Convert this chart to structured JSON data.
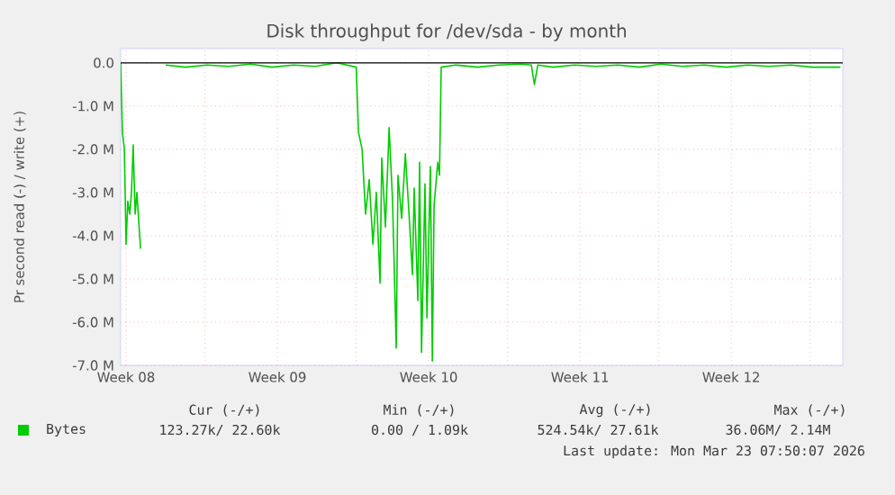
{
  "chart_data": {
    "type": "line",
    "title": "Disk throughput for /dev/sda - by month",
    "ylabel": "Pr second read (-) / write (+)",
    "x": [
      "2026-02-17T22:00",
      "2026-02-17T23:55",
      "2026-02-18T02:05",
      "2026-02-18T04:00",
      "2026-02-18T05:55",
      "2026-02-18T08:05",
      "2026-02-18T10:00",
      "2026-02-18T11:55",
      "2026-02-18T14:05",
      "2026-02-18T16:00",
      "2026-02-18T20:05",
      "2026-02-18T22:00",
      "2026-02-19T23:55",
      "2026-02-20T22:00",
      "2026-02-21T22:00",
      "2026-02-22T22:00",
      "2026-02-23T22:00",
      "2026-02-24T22:00",
      "2026-02-25T22:00",
      "2026-02-26T22:00",
      "2026-02-27T22:00",
      "2026-02-28T19:35",
      "2026-02-28T22:00",
      "2026-03-01T02:05",
      "2026-03-01T05:55",
      "2026-03-01T10:00",
      "2026-03-01T14:05",
      "2026-03-01T17:55",
      "2026-03-01T22:00",
      "2026-03-01T23:55",
      "2026-03-02T04:00",
      "2026-03-02T08:05",
      "2026-03-02T11:55",
      "2026-03-02T16:00",
      "2026-03-02T17:55",
      "2026-03-02T22:00",
      "2026-03-03T02:05",
      "2026-03-03T05:55",
      "2026-03-03T10:00",
      "2026-03-03T11:55",
      "2026-03-03T16:00",
      "2026-03-03T17:55",
      "2026-03-03T20:05",
      "2026-03-03T23:55",
      "2026-03-04T02:05",
      "2026-03-04T05:55",
      "2026-03-04T08:05",
      "2026-03-04T10:00",
      "2026-03-04T14:05",
      "2026-03-04T16:00",
      "2026-03-04T17:55",
      "2026-03-05T10:00",
      "2026-03-06T10:00",
      "2026-03-07T10:00",
      "2026-03-08T10:00",
      "2026-03-08T22:00",
      "2026-03-09T01:22",
      "2026-03-09T05:12",
      "2026-03-09T22:00",
      "2026-03-10T22:00",
      "2026-03-11T22:00",
      "2026-03-12T22:00",
      "2026-03-13T22:00",
      "2026-03-14T22:00",
      "2026-03-15T22:00",
      "2026-03-16T22:00",
      "2026-03-17T22:00",
      "2026-03-18T22:00",
      "2026-03-19T22:00",
      "2026-03-20T22:00",
      "2026-03-21T22:00",
      "2026-03-23T05:12"
    ],
    "series": [
      {
        "name": "Bytes",
        "color": "#00cc00",
        "values": [
          0.0,
          -1.6,
          -2.0,
          -4.2,
          -3.2,
          -3.5,
          -3.0,
          -1.9,
          -3.5,
          -3.0,
          -4.3,
          null,
          -0.05,
          -0.1,
          -0.05,
          -0.08,
          -0.03,
          -0.1,
          -0.05,
          -0.08,
          0.0,
          -0.1,
          -1.6,
          -2.0,
          -3.5,
          -2.7,
          -4.2,
          -3.0,
          -5.1,
          -2.2,
          -3.8,
          -1.5,
          -3.2,
          -6.6,
          -2.6,
          -3.6,
          -2.1,
          -3.4,
          -4.9,
          -2.9,
          -5.5,
          -2.3,
          -6.7,
          -2.8,
          -5.9,
          -2.4,
          -6.9,
          -3.3,
          -2.3,
          -2.6,
          -0.1,
          -0.05,
          -0.1,
          -0.05,
          -0.03,
          -0.05,
          -0.5,
          -0.05,
          -0.1,
          -0.05,
          -0.08,
          -0.05,
          -0.1,
          -0.03,
          -0.08,
          -0.05,
          -0.1,
          -0.05,
          -0.08,
          -0.05,
          -0.1,
          -0.1
        ]
      }
    ],
    "xlim": [
      "2026-02-17T22:00",
      "2026-03-23T07:50"
    ],
    "xticks": [
      {
        "value": "2026-02-18T04:00",
        "label": "Week 08"
      },
      {
        "value": "2026-02-21T19:35",
        "label": null
      },
      {
        "value": "2026-02-25T04:00",
        "label": "Week 09"
      },
      {
        "value": "2026-02-28T19:35",
        "label": null
      },
      {
        "value": "2026-03-04T04:00",
        "label": "Week 10"
      },
      {
        "value": "2026-03-07T19:35",
        "label": null
      },
      {
        "value": "2026-03-11T04:00",
        "label": "Week 11"
      },
      {
        "value": "2026-03-14T19:35",
        "label": null
      },
      {
        "value": "2026-03-18T04:00",
        "label": "Week 12"
      },
      {
        "value": "2026-03-21T19:35",
        "label": null
      }
    ],
    "ylim": [
      -7,
      0.33
    ],
    "yticks": [
      {
        "value": -7,
        "label": "-7.0 M"
      },
      {
        "value": -6,
        "label": "-6.0 M"
      },
      {
        "value": -5,
        "label": "-5.0 M"
      },
      {
        "value": -4,
        "label": "-4.0 M"
      },
      {
        "value": -3,
        "label": "-3.0 M"
      },
      {
        "value": -2,
        "label": "-2.0 M"
      },
      {
        "value": -1,
        "label": "-1.0 M"
      },
      {
        "value": 0,
        "label": "0.0"
      }
    ],
    "grid": true,
    "legend": "bottom",
    "marker": "none",
    "line_style": "solid",
    "ref_lines": [
      {
        "axis": "y",
        "value": 0,
        "color": "#000000"
      }
    ],
    "annotations": [
      "Cur (-/+)",
      "Min (-/+)",
      "Avg (-/+)",
      "Max (-/+)",
      "123.27k/ 22.60k",
      "0.00 / 1.09k",
      "524.54k/ 27.61k",
      "36.06M/ 2.14M",
      "Last update: Mon Mar 23 07:50:07 2026"
    ]
  }
}
